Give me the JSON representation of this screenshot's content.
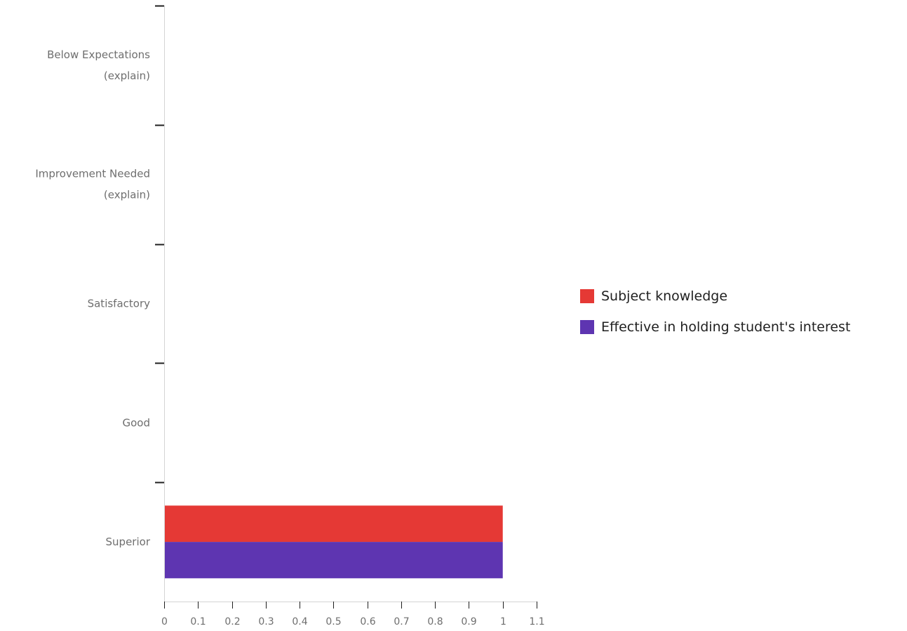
{
  "chart_data": {
    "type": "bar",
    "orientation": "horizontal",
    "categories": [
      [
        "Below Expectations",
        "(explain)"
      ],
      [
        "Improvement Needed",
        "(explain)"
      ],
      [
        "Satisfactory"
      ],
      [
        "Good"
      ],
      [
        "Superior"
      ]
    ],
    "series": [
      {
        "name": "Subject knowledge",
        "color": "#e53935",
        "values": [
          0,
          0,
          0,
          0,
          1
        ]
      },
      {
        "name": "Effective in holding student's interest",
        "color": "#5e35b1",
        "values": [
          0,
          0,
          0,
          0,
          1
        ]
      }
    ],
    "xlim": [
      0,
      1.1
    ],
    "xticks": [
      "0",
      "0.1",
      "0.2",
      "0.3",
      "0.4",
      "0.5",
      "0.6",
      "0.7",
      "0.8",
      "0.9",
      "1",
      "1.1"
    ],
    "legend_position": "right",
    "grid": false
  }
}
